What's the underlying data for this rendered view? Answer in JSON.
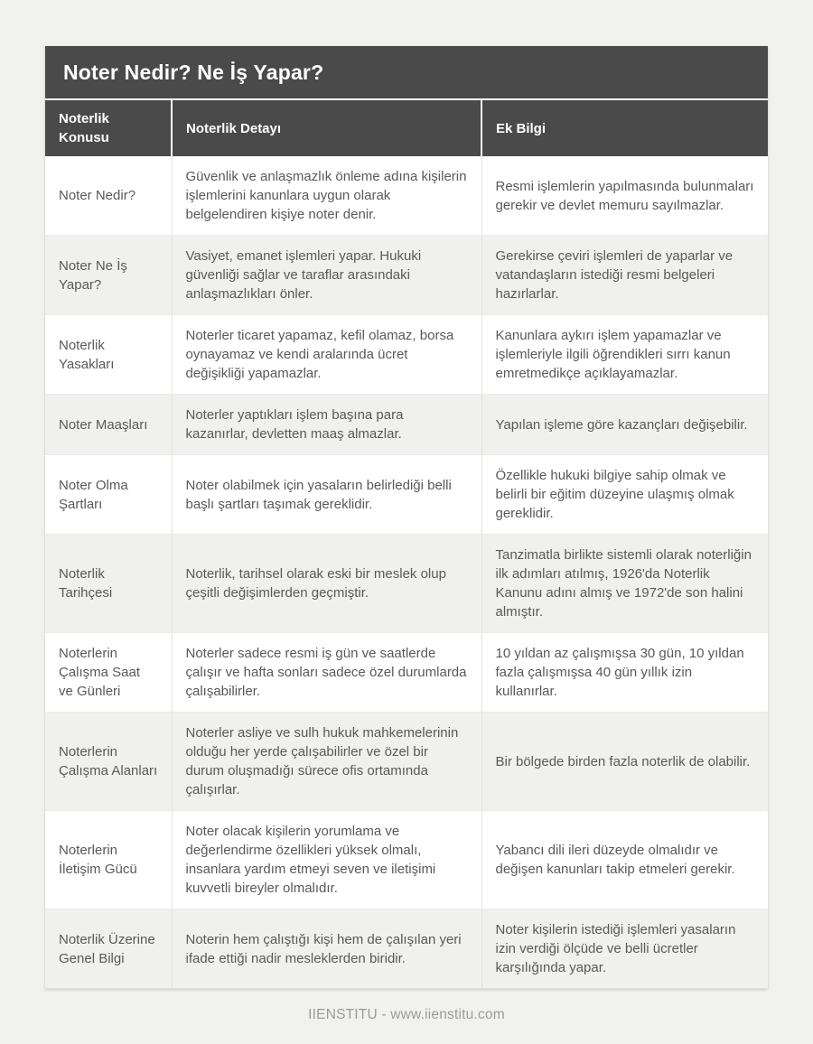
{
  "page": {
    "title": "Noter Nedir? Ne İş Yapar?",
    "footer": "IIENSTITU - www.iienstitu.com"
  },
  "table": {
    "columns": [
      "Noterlik Konusu",
      "Noterlik Detayı",
      "Ek Bilgi"
    ],
    "rows": [
      {
        "topic": "Noter Nedir?",
        "detail": "Güvenlik ve anlaşmazlık önleme adına kişilerin işlemlerini kanunlara uygun olarak belgelendiren kişiye noter denir.",
        "extra": "Resmi işlemlerin yapılmasında bulunmaları gerekir ve devlet memuru sayılmazlar."
      },
      {
        "topic": "Noter Ne İş Yapar?",
        "detail": "Vasiyet, emanet işlemleri yapar. Hukuki güvenliği sağlar ve taraflar arasındaki anlaşmazlıkları önler.",
        "extra": "Gerekirse çeviri işlemleri de yaparlar ve vatandaşların istediği resmi belgeleri hazırlarlar."
      },
      {
        "topic": "Noterlik Yasakları",
        "detail": "Noterler ticaret yapamaz, kefil olamaz, borsa oynayamaz ve kendi aralarında ücret değişikliği yapamazlar.",
        "extra": "Kanunlara aykırı işlem yapamazlar ve işlemleriyle ilgili öğrendikleri sırrı kanun emretmedikçe açıklayamazlar."
      },
      {
        "topic": "Noter Maaşları",
        "detail": "Noterler yaptıkları işlem başına para kazanırlar, devletten maaş almazlar.",
        "extra": "Yapılan işleme göre kazançları değişebilir."
      },
      {
        "topic": "Noter Olma Şartları",
        "detail": "Noter olabilmek için yasaların belirlediği belli başlı şartları taşımak gereklidir.",
        "extra": "Özellikle hukuki bilgiye sahip olmak ve belirli bir eğitim düzeyine ulaşmış olmak gereklidir."
      },
      {
        "topic": "Noterlik Tarihçesi",
        "detail": "Noterlik, tarihsel olarak eski bir meslek olup çeşitli değişimlerden geçmiştir.",
        "extra": "Tanzimatla birlikte sistemli olarak noterliğin ilk adımları atılmış, 1926'da Noterlik Kanunu adını almış ve 1972'de son halini almıştır."
      },
      {
        "topic": "Noterlerin Çalışma Saat ve Günleri",
        "detail": "Noterler sadece resmi iş gün ve saatlerde çalışır ve hafta sonları sadece özel durumlarda çalışabilirler.",
        "extra": "10 yıldan az çalışmışsa 30 gün, 10 yıldan fazla çalışmışsa 40 gün yıllık izin kullanırlar."
      },
      {
        "topic": "Noterlerin Çalışma Alanları",
        "detail": "Noterler asliye ve sulh hukuk mahkemelerinin olduğu her yerde çalışabilirler ve özel bir durum oluşmadığı sürece ofis ortamında çalışırlar.",
        "extra": "Bir bölgede birden fazla noterlik de olabilir."
      },
      {
        "topic": "Noterlerin İletişim Gücü",
        "detail": "Noter olacak kişilerin yorumlama ve değerlendirme özellikleri yüksek olmalı, insanlara yardım etmeyi seven ve iletişimi kuvvetli bireyler olmalıdır.",
        "extra": "Yabancı dili ileri düzeyde olmalıdır ve değişen kanunları takip etmeleri gerekir."
      },
      {
        "topic": "Noterlik Üzerine Genel Bilgi",
        "detail": "Noterin hem çalıştığı kişi hem de çalışılan yeri ifade ettiği nadir mesleklerden biridir.",
        "extra": "Noter kişilerin istediği işlemleri yasaların izin verdiği ölçüde ve belli ücretler karşılığında yapar."
      }
    ]
  },
  "colors": {
    "header_bg": "#4a4a4a",
    "header_text": "#ffffff",
    "row_alt_bg": "#f0f0ee",
    "body_text": "#595959",
    "page_bg": "#f1f1f0",
    "footer_text": "#9b9b9b"
  }
}
